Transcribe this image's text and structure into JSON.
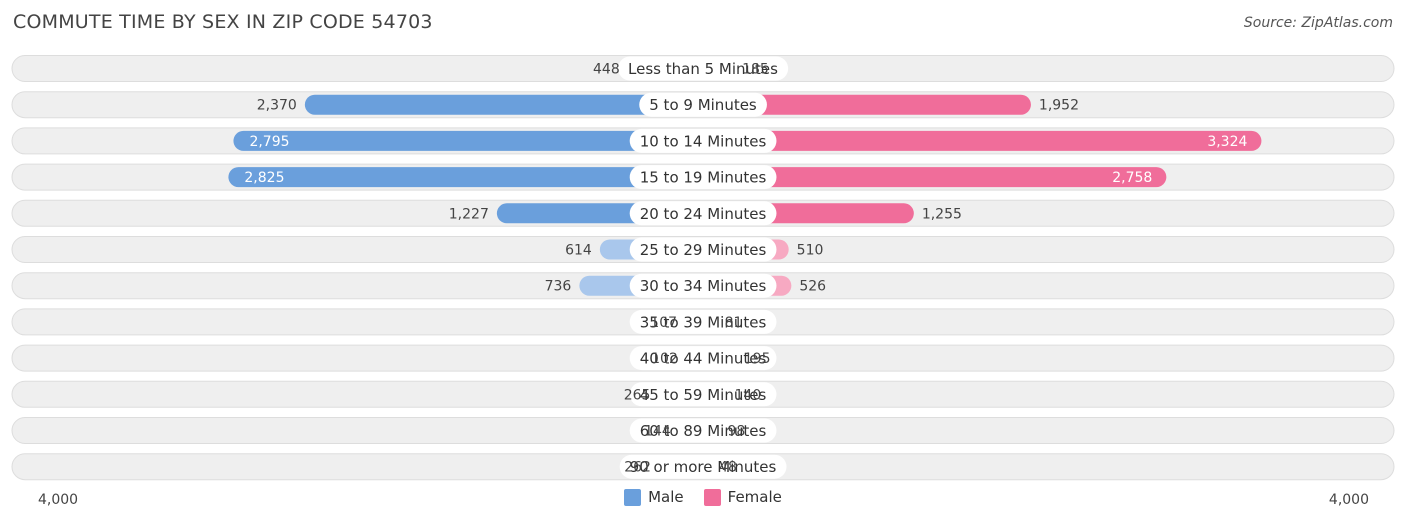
{
  "title": "COMMUTE TIME BY SEX IN ZIP CODE 54703",
  "source": "Source: ZipAtlas.com",
  "colors": {
    "male_strong": "#6a9fdc",
    "male_light": "#a9c7ec",
    "female_strong": "#f06d9a",
    "female_light": "#f7a9c2",
    "row_bg": "#efefef",
    "row_border": "#dddddd"
  },
  "legend": {
    "male": "Male",
    "female": "Female"
  },
  "chart_data": {
    "type": "bar",
    "orientation": "horizontal-diverging",
    "title": "COMMUTE TIME BY SEX IN ZIP CODE 54703",
    "xlim": [
      -4000,
      4000
    ],
    "axis_left_label": "4,000",
    "axis_right_label": "4,000",
    "categories": [
      "Less than 5 Minutes",
      "5 to 9 Minutes",
      "10 to 14 Minutes",
      "15 to 19 Minutes",
      "20 to 24 Minutes",
      "25 to 29 Minutes",
      "30 to 34 Minutes",
      "35 to 39 Minutes",
      "40 to 44 Minutes",
      "45 to 59 Minutes",
      "60 to 89 Minutes",
      "90 or more Minutes"
    ],
    "series": [
      {
        "name": "Male",
        "values": [
          448,
          2370,
          2795,
          2825,
          1227,
          614,
          736,
          107,
          102,
          265,
          144,
          262
        ],
        "labels": [
          "448",
          "2,370",
          "2,795",
          "2,825",
          "1,227",
          "614",
          "736",
          "107",
          "102",
          "265",
          "144",
          "262"
        ]
      },
      {
        "name": "Female",
        "values": [
          185,
          1952,
          3324,
          2758,
          1255,
          510,
          526,
          81,
          195,
          140,
          98,
          48
        ],
        "labels": [
          "185",
          "1,952",
          "3,324",
          "2,758",
          "1,255",
          "510",
          "526",
          "81",
          "195",
          "140",
          "98",
          "48"
        ]
      }
    ],
    "legend_position": "bottom-center",
    "grid": false
  }
}
